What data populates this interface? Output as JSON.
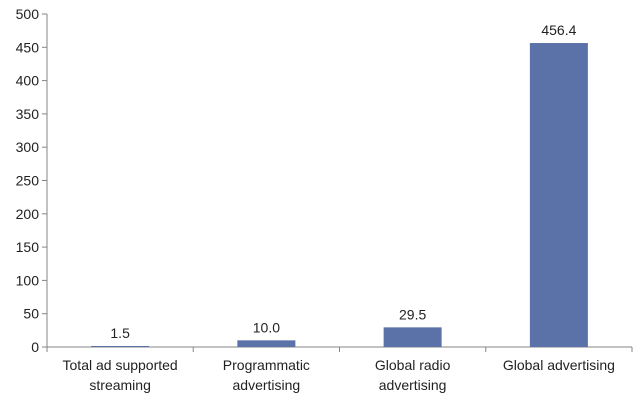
{
  "chart_data": {
    "type": "bar",
    "title": "",
    "xlabel": "",
    "ylabel": "",
    "categories": [
      [
        "Total ad supported",
        "streaming"
      ],
      [
        "Programmatic",
        "advertising"
      ],
      [
        "Global radio",
        "advertising"
      ],
      [
        "Global advertising"
      ]
    ],
    "values": [
      1.5,
      10.0,
      29.5,
      456.4
    ],
    "value_labels": [
      "1.5",
      "10.0",
      "29.5",
      "456.4"
    ],
    "ylim": [
      0,
      500
    ],
    "yticks": [
      0,
      50,
      100,
      150,
      200,
      250,
      300,
      350,
      400,
      450,
      500
    ],
    "grid": false,
    "legend": "none",
    "colors": {
      "bar": "#5b72a8",
      "axis": "#868686",
      "text": "#222222"
    }
  }
}
